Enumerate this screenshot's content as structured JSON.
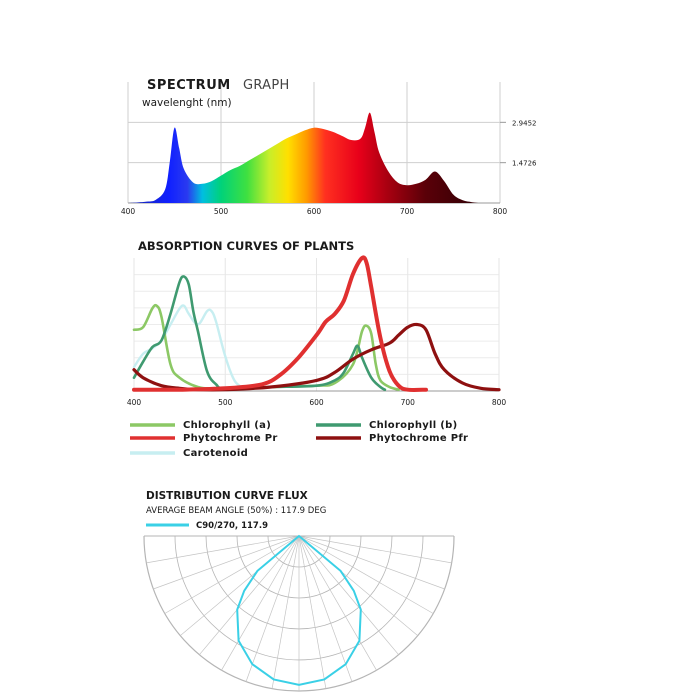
{
  "chart_data": [
    {
      "type": "area",
      "title_bold": "SPECTRUM",
      "title_light": "GRAPH",
      "xlabel": "wavelenght (nm)",
      "xlim": [
        400,
        800
      ],
      "ylim": [
        0,
        4.4178
      ],
      "xticks": [
        "400",
        "500",
        "600",
        "700",
        "800"
      ],
      "yticks": [
        {
          "value": 2.9452,
          "label": "2.9452"
        },
        {
          "value": 1.4726,
          "label": "1.4726"
        }
      ],
      "grid": true,
      "fill": "visible-spectrum gradient",
      "series": [
        {
          "x": [
            400,
            420,
            430,
            440,
            445,
            450,
            455,
            460,
            470,
            480,
            490,
            500,
            510,
            520,
            530,
            540,
            550,
            560,
            570,
            580,
            590,
            600,
            610,
            620,
            630,
            640,
            650,
            655,
            660,
            665,
            670,
            680,
            690,
            700,
            710,
            720,
            730,
            740,
            750,
            760,
            770,
            780,
            800
          ],
          "y": [
            0.0,
            0.05,
            0.12,
            0.5,
            1.5,
            2.75,
            2.0,
            1.25,
            0.75,
            0.7,
            0.8,
            1.0,
            1.2,
            1.35,
            1.55,
            1.75,
            1.95,
            2.15,
            2.35,
            2.5,
            2.65,
            2.75,
            2.7,
            2.6,
            2.45,
            2.3,
            2.35,
            2.75,
            3.3,
            2.6,
            1.85,
            1.15,
            0.75,
            0.65,
            0.7,
            0.85,
            1.15,
            0.8,
            0.3,
            0.1,
            0.03,
            0.0,
            0.0
          ]
        }
      ]
    },
    {
      "type": "line",
      "title": "ABSORPTION CURVES OF PLANTS",
      "xlim": [
        400,
        800
      ],
      "ylim": [
        0,
        1
      ],
      "xticks": [
        "400",
        "500",
        "600",
        "700",
        "800"
      ],
      "grid": true,
      "legend_position": "bottom",
      "series": [
        {
          "name": "Chlorophyll (a)",
          "color": "#8cc865",
          "x": [
            400,
            410,
            420,
            425,
            430,
            440,
            450,
            470,
            490,
            550,
            600,
            620,
            640,
            650,
            655,
            660,
            665,
            670,
            680,
            690
          ],
          "y": [
            0.46,
            0.48,
            0.62,
            0.64,
            0.56,
            0.2,
            0.1,
            0.03,
            0.02,
            0.03,
            0.04,
            0.06,
            0.2,
            0.45,
            0.49,
            0.43,
            0.2,
            0.08,
            0.03,
            0.01
          ]
        },
        {
          "name": "Chlorophyll (b)",
          "color": "#3f9a70",
          "x": [
            400,
            410,
            420,
            430,
            440,
            450,
            455,
            460,
            465,
            470,
            480,
            490,
            500,
            550,
            600,
            620,
            630,
            640,
            645,
            650,
            660,
            670,
            675
          ],
          "y": [
            0.1,
            0.22,
            0.33,
            0.38,
            0.58,
            0.82,
            0.86,
            0.8,
            0.6,
            0.45,
            0.15,
            0.05,
            0.02,
            0.03,
            0.04,
            0.08,
            0.14,
            0.28,
            0.34,
            0.25,
            0.1,
            0.03,
            0.01
          ]
        },
        {
          "name": "Phytochrome Pr",
          "color": "#e03030",
          "x": [
            400,
            450,
            500,
            540,
            560,
            580,
            600,
            610,
            620,
            630,
            640,
            650,
            655,
            660,
            670,
            680,
            690,
            700,
            720
          ],
          "y": [
            0.01,
            0.01,
            0.02,
            0.05,
            0.12,
            0.25,
            0.42,
            0.52,
            0.58,
            0.68,
            0.88,
            1.0,
            0.96,
            0.78,
            0.4,
            0.15,
            0.04,
            0.01,
            0.01
          ]
        },
        {
          "name": "Phytochrome Pfr",
          "color": "#8e1010",
          "x": [
            400,
            410,
            430,
            450,
            470,
            500,
            550,
            600,
            620,
            640,
            660,
            680,
            690,
            700,
            710,
            720,
            730,
            740,
            760,
            780,
            800
          ],
          "y": [
            0.16,
            0.1,
            0.04,
            0.02,
            0.01,
            0.01,
            0.03,
            0.08,
            0.14,
            0.24,
            0.31,
            0.36,
            0.42,
            0.48,
            0.5,
            0.46,
            0.28,
            0.16,
            0.06,
            0.02,
            0.01
          ]
        },
        {
          "name": "Carotenoid",
          "color": "#c7eef1",
          "x": [
            400,
            410,
            420,
            430,
            440,
            450,
            455,
            460,
            470,
            480,
            485,
            490,
            500,
            510,
            520
          ],
          "y": [
            0.18,
            0.28,
            0.32,
            0.38,
            0.5,
            0.62,
            0.64,
            0.58,
            0.5,
            0.6,
            0.6,
            0.52,
            0.26,
            0.08,
            0.02
          ]
        }
      ]
    },
    {
      "type": "polar",
      "title": "DISTRIBUTION CURVE FLUX",
      "subtitle": "AVERAGE BEAM ANGLE  (50%) : 117.9 DEG",
      "series": [
        {
          "name": "C90/270, 117.9",
          "color": "#3ad0e6",
          "angle_deg": [
            -90,
            -75,
            -60,
            -50,
            -45,
            -40,
            -30,
            -20,
            -10,
            0,
            10,
            20,
            30,
            40,
            45,
            50,
            60,
            75,
            90
          ],
          "intensity": [
            0.0,
            0.0,
            0.0,
            0.35,
            0.5,
            0.62,
            0.78,
            0.88,
            0.94,
            0.96,
            0.94,
            0.88,
            0.78,
            0.62,
            0.5,
            0.35,
            0.0,
            0.0,
            0.0
          ]
        }
      ]
    }
  ]
}
